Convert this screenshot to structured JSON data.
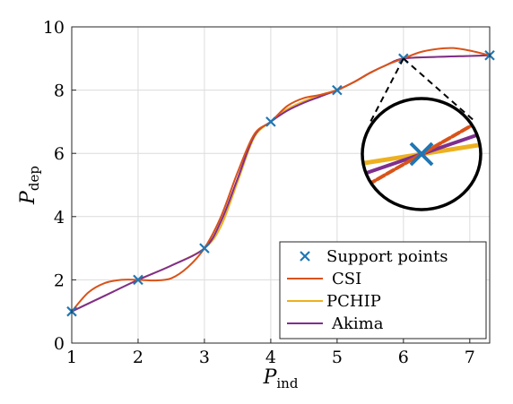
{
  "chart_data": {
    "type": "line",
    "title": "",
    "xlabel": "P",
    "xlabel_sub": "ind",
    "ylabel": "P",
    "ylabel_sub": "dep",
    "xlim": [
      1,
      7.3
    ],
    "ylim": [
      0,
      10
    ],
    "xticks": [
      1,
      2,
      3,
      4,
      5,
      6,
      7
    ],
    "yticks": [
      0,
      2,
      4,
      6,
      8,
      10
    ],
    "grid": true,
    "legend_position": "bottom-right",
    "support_points": {
      "name": "Support points",
      "color": "#1f77b4",
      "x": [
        1,
        2,
        3,
        4,
        5,
        6,
        7.3
      ],
      "y": [
        1,
        2,
        3,
        7,
        8,
        9,
        9.1
      ]
    },
    "series": [
      {
        "name": "CSI",
        "color": "#d95319",
        "x": [
          1,
          1.25,
          1.5,
          1.75,
          2,
          2.25,
          2.5,
          2.75,
          3,
          3.25,
          3.5,
          3.75,
          4,
          4.25,
          4.5,
          4.75,
          5,
          5.25,
          5.5,
          5.75,
          6,
          6.25,
          6.5,
          6.75,
          7,
          7.3
        ],
        "y": [
          1,
          1.6,
          1.9,
          2.0,
          2.0,
          1.98,
          2.05,
          2.4,
          3.0,
          4.0,
          5.4,
          6.6,
          7.0,
          7.5,
          7.75,
          7.85,
          8.0,
          8.25,
          8.55,
          8.8,
          9.0,
          9.2,
          9.3,
          9.33,
          9.25,
          9.1
        ]
      },
      {
        "name": "PCHIP",
        "color": "#edb120",
        "x": [
          1,
          1.5,
          2,
          2.5,
          3,
          3.25,
          3.5,
          3.75,
          4,
          4.25,
          4.5,
          4.75,
          5,
          5.25,
          5.5,
          5.75,
          6,
          6.5,
          7,
          7.3
        ],
        "y": [
          1,
          1.5,
          2.0,
          2.45,
          3.0,
          3.7,
          5.1,
          6.5,
          7.0,
          7.4,
          7.65,
          7.85,
          8.0,
          8.25,
          8.55,
          8.8,
          9.0,
          9.05,
          9.08,
          9.1
        ]
      },
      {
        "name": "Akima",
        "color": "#7e2f8e",
        "x": [
          1,
          1.5,
          2,
          2.5,
          3,
          3.25,
          3.5,
          3.75,
          4,
          4.25,
          4.5,
          4.75,
          5,
          5.25,
          5.5,
          5.75,
          6,
          6.5,
          7,
          7.3
        ],
        "y": [
          1,
          1.5,
          2.0,
          2.45,
          3.0,
          3.85,
          5.2,
          6.55,
          7.0,
          7.35,
          7.6,
          7.8,
          8.0,
          8.25,
          8.55,
          8.8,
          9.0,
          9.05,
          9.08,
          9.1
        ]
      }
    ],
    "inset": {
      "type": "zoom-magnifier",
      "center_x": 6,
      "center_y": 9
    }
  }
}
